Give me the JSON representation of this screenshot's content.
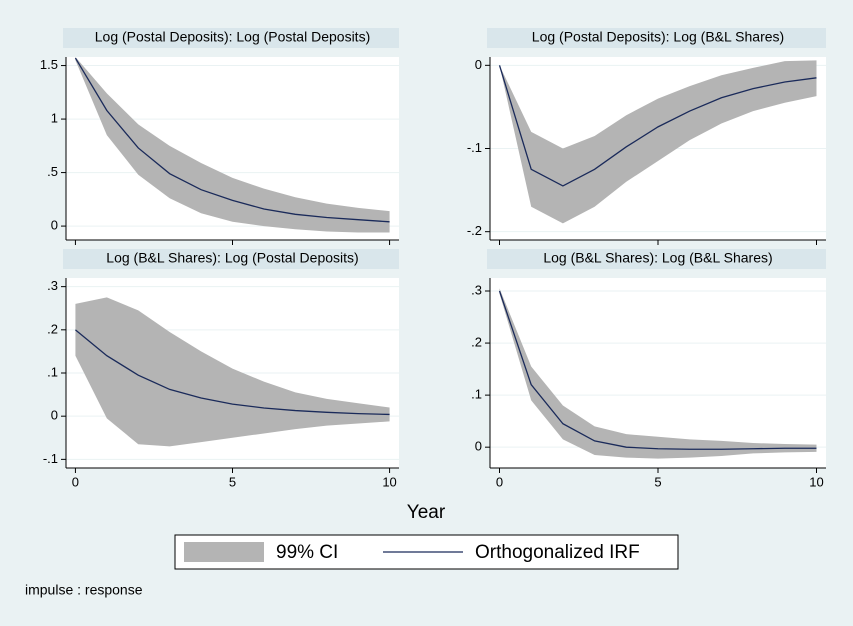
{
  "chart_data": [
    {
      "type": "line",
      "title": "Log (Postal Deposits): Log (Postal Deposits)",
      "x": [
        0,
        1,
        2,
        3,
        4,
        5,
        6,
        7,
        8,
        9,
        10
      ],
      "xlim": [
        -0.3,
        10.3
      ],
      "xticks": [
        0,
        5,
        10
      ],
      "ylim": [
        -0.13,
        1.58
      ],
      "yticks": [
        1.5,
        1,
        {
          "value": 0.5,
          "label": ".5"
        },
        0
      ],
      "grid": true,
      "series": [
        {
          "name": "99% CI",
          "color": "#b4b4b4",
          "upper": [
            1.58,
            1.24,
            0.95,
            0.75,
            0.59,
            0.45,
            0.35,
            0.27,
            0.21,
            0.17,
            0.14
          ],
          "lower": [
            1.55,
            0.85,
            0.48,
            0.26,
            0.12,
            0.04,
            0,
            -0.03,
            -0.05,
            -0.06,
            -0.06
          ]
        },
        {
          "name": "Orthogonalized IRF",
          "color": "#1a2a5a",
          "values": [
            1.57,
            1.08,
            0.73,
            0.49,
            0.34,
            0.24,
            0.16,
            0.11,
            0.08,
            0.06,
            0.04
          ]
        }
      ]
    },
    {
      "type": "line",
      "title": "Log (Postal Deposits): Log (B&L Shares)",
      "x": [
        0,
        1,
        2,
        3,
        4,
        5,
        6,
        7,
        8,
        9,
        10
      ],
      "xlim": [
        -0.3,
        10.3
      ],
      "xticks": [
        0,
        5,
        10
      ],
      "ylim": [
        -0.21,
        0.01
      ],
      "yticks": [
        0,
        {
          "value": -0.1,
          "label": "-.1"
        },
        {
          "value": -0.2,
          "label": "-.2"
        }
      ],
      "grid": true,
      "series": [
        {
          "name": "99% CI",
          "color": "#b4b4b4",
          "upper": [
            0,
            -0.08,
            -0.1,
            -0.085,
            -0.06,
            -0.04,
            -0.025,
            -0.012,
            -0.003,
            0.005,
            0.006
          ],
          "lower": [
            0,
            -0.17,
            -0.19,
            -0.17,
            -0.14,
            -0.115,
            -0.09,
            -0.07,
            -0.055,
            -0.045,
            -0.037
          ]
        },
        {
          "name": "Orthogonalized IRF",
          "color": "#1a2a5a",
          "values": [
            0,
            -0.125,
            -0.145,
            -0.125,
            -0.098,
            -0.074,
            -0.055,
            -0.039,
            -0.028,
            -0.02,
            -0.015
          ]
        }
      ]
    },
    {
      "type": "line",
      "title": "Log (B&L Shares): Log (Postal Deposits)",
      "x": [
        0,
        1,
        2,
        3,
        4,
        5,
        6,
        7,
        8,
        9,
        10
      ],
      "xlim": [
        -0.3,
        10.3
      ],
      "xticks": [
        0,
        5,
        10
      ],
      "ylim": [
        -0.12,
        0.32
      ],
      "yticks": [
        {
          "value": 0.3,
          "label": ".3"
        },
        {
          "value": 0.2,
          "label": ".2"
        },
        {
          "value": 0.1,
          "label": ".1"
        },
        0,
        {
          "value": -0.1,
          "label": "-.1"
        }
      ],
      "grid": true,
      "series": [
        {
          "name": "99% CI",
          "color": "#b4b4b4",
          "upper": [
            0.26,
            0.275,
            0.245,
            0.195,
            0.15,
            0.11,
            0.08,
            0.055,
            0.04,
            0.03,
            0.02
          ],
          "lower": [
            0.14,
            -0.005,
            -0.065,
            -0.07,
            -0.06,
            -0.05,
            -0.04,
            -0.03,
            -0.022,
            -0.017,
            -0.012
          ]
        },
        {
          "name": "Orthogonalized IRF",
          "color": "#1a2a5a",
          "values": [
            0.2,
            0.14,
            0.095,
            0.062,
            0.042,
            0.028,
            0.019,
            0.013,
            0.009,
            0.006,
            0.004
          ]
        }
      ]
    },
    {
      "type": "line",
      "title": "Log (B&L Shares): Log (B&L Shares)",
      "x": [
        0,
        1,
        2,
        3,
        4,
        5,
        6,
        7,
        8,
        9,
        10
      ],
      "xlim": [
        -0.3,
        10.3
      ],
      "xticks": [
        0,
        5,
        10
      ],
      "ylim": [
        -0.04,
        0.325
      ],
      "yticks": [
        {
          "value": 0.3,
          "label": ".3"
        },
        {
          "value": 0.2,
          "label": ".2"
        },
        {
          "value": 0.1,
          "label": ".1"
        },
        0
      ],
      "grid": true,
      "series": [
        {
          "name": "99% CI",
          "color": "#b4b4b4",
          "upper": [
            0.305,
            0.155,
            0.08,
            0.04,
            0.025,
            0.02,
            0.015,
            0.012,
            0.008,
            0.006,
            0.005
          ],
          "lower": [
            0.295,
            0.09,
            0.015,
            -0.015,
            -0.02,
            -0.022,
            -0.02,
            -0.017,
            -0.012,
            -0.01,
            -0.009
          ]
        },
        {
          "name": "Orthogonalized IRF",
          "color": "#1a2a5a",
          "values": [
            0.3,
            0.12,
            0.045,
            0.012,
            0,
            -0.003,
            -0.004,
            -0.004,
            -0.003,
            -0.002,
            -0.002
          ]
        }
      ]
    }
  ],
  "x_label": "Year",
  "note": "impulse : response"
}
